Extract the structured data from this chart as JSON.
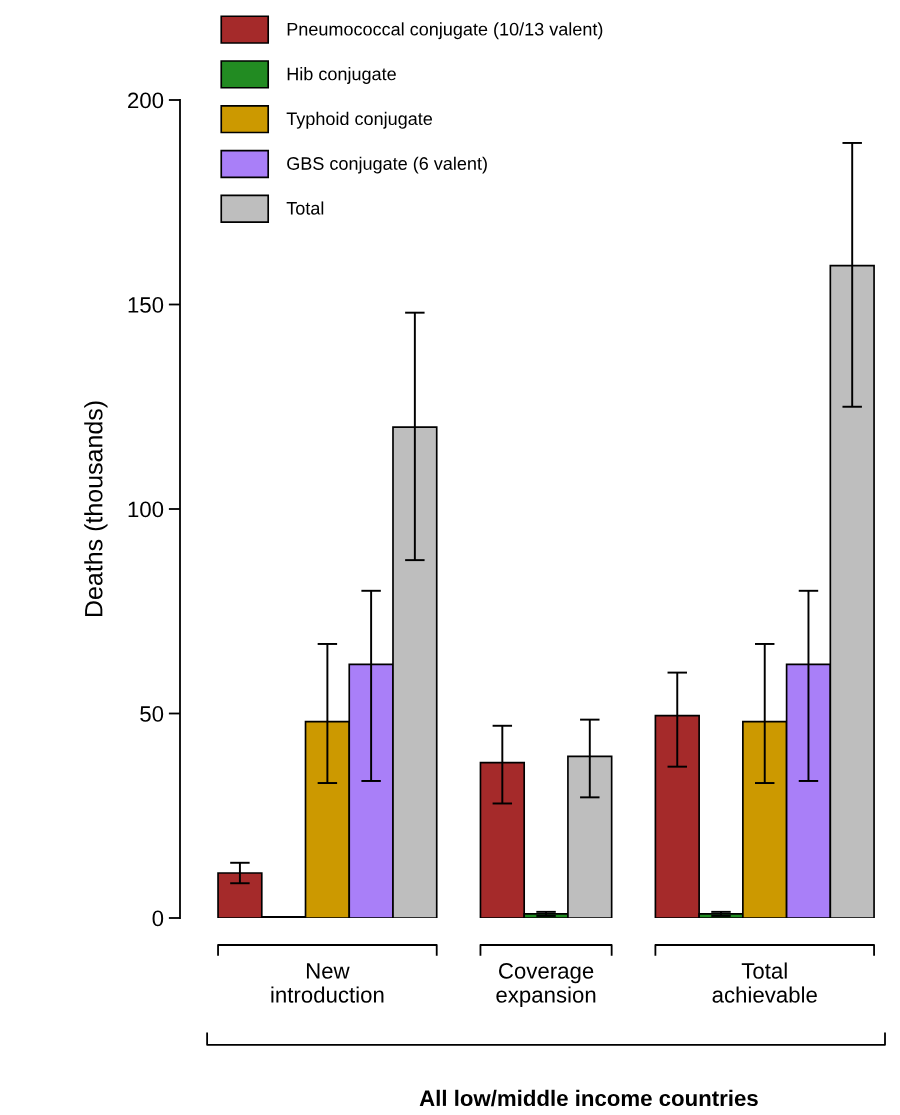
{
  "chart_data": {
    "type": "bar",
    "ylabel": "Deaths (thousands)",
    "xlabel": "All low/middle income countries",
    "categories": [
      "New\nintroduction",
      "Coverage\nexpansion",
      "Total\nachievable"
    ],
    "series": [
      {
        "name": "Pneumococcal conjugate (10/13 valent)",
        "color": "#a52a2a",
        "values": [
          11,
          38,
          49.5
        ],
        "errors": [
          [
            8.5,
            13.5
          ],
          [
            28,
            47
          ],
          [
            37,
            60
          ]
        ]
      },
      {
        "name": "Hib conjugate",
        "color": "#228b22",
        "values": [
          0.3,
          1,
          1
        ],
        "errors": [
          null,
          [
            0.5,
            1.5
          ],
          [
            0.5,
            1.5
          ]
        ]
      },
      {
        "name": "Typhoid conjugate",
        "color": "#cc9900",
        "values": [
          48,
          null,
          48
        ],
        "errors": [
          [
            33,
            67
          ],
          null,
          [
            33,
            67
          ]
        ]
      },
      {
        "name": "GBS conjugate (6 valent)",
        "color": "#a97ff8",
        "values": [
          62,
          null,
          62
        ],
        "errors": [
          [
            33.5,
            80
          ],
          null,
          [
            33.5,
            80
          ]
        ]
      },
      {
        "name": "Total",
        "color": "#bebebe",
        "values": [
          120,
          39.5,
          159.5
        ],
        "errors": [
          [
            87.5,
            148
          ],
          [
            29.5,
            48.5
          ],
          [
            125,
            189.5
          ]
        ]
      }
    ],
    "ylim": [
      0,
      200
    ],
    "yticks": [
      0,
      50,
      100,
      150,
      200
    ],
    "legend": "top left"
  }
}
